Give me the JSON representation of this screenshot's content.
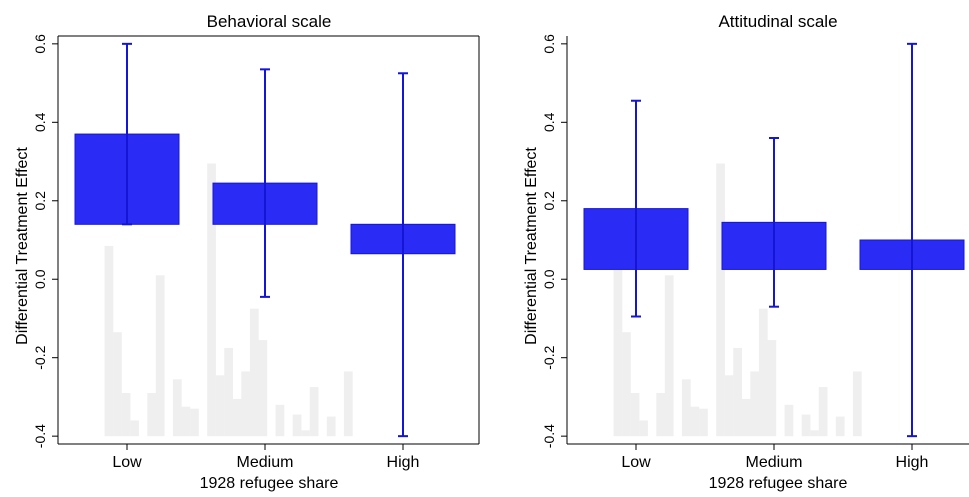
{
  "chart_data": [
    {
      "type": "bar",
      "title": "Behavioral scale",
      "ylabel": "Differential Treatment Effect",
      "xlabel": "1928 refugee share",
      "categories": [
        "Low",
        "Medium",
        "High"
      ],
      "ylim": [
        -0.42,
        0.62
      ],
      "yticks": [
        "-0.4",
        "-0.2",
        "0.0",
        "0.2",
        "0.4",
        "0.6"
      ],
      "bars": [
        {
          "category": "Low",
          "low": 0.14,
          "high": 0.37,
          "ci_low": 0.14,
          "ci_high": 0.6
        },
        {
          "category": "Medium",
          "low": 0.14,
          "high": 0.245,
          "ci_low": -0.045,
          "ci_high": 0.535
        },
        {
          "category": "High",
          "low": 0.065,
          "high": 0.14,
          "ci_low": -0.4,
          "ci_high": 0.525
        }
      ],
      "histogram_heights": [
        0.0,
        0.485,
        0.265,
        0.11,
        0.04,
        0.0,
        0.11,
        0.41,
        0.0,
        0.145,
        0.075,
        0.07,
        0.0,
        0.695,
        0.155,
        0.225,
        0.095,
        0.165,
        0.325,
        0.245,
        0.0,
        0.08,
        0.0,
        0.055,
        0.015,
        0.125,
        0.0,
        0.05,
        0.0,
        0.165,
        0.0
      ],
      "colors": {
        "bar": "#2a2cf5",
        "error": "#1515d6",
        "hist": "#efefef"
      }
    },
    {
      "type": "bar",
      "title": "Attitudinal scale",
      "ylabel": "Differential Treatment Effect",
      "xlabel": "1928 refugee share",
      "categories": [
        "Low",
        "Medium",
        "High"
      ],
      "ylim": [
        -0.42,
        0.62
      ],
      "yticks": [
        "-0.4",
        "-0.2",
        "0.0",
        "0.2",
        "0.4",
        "0.6"
      ],
      "bars": [
        {
          "category": "Low",
          "low": 0.025,
          "high": 0.18,
          "ci_low": -0.095,
          "ci_high": 0.455
        },
        {
          "category": "Medium",
          "low": 0.025,
          "high": 0.145,
          "ci_low": -0.07,
          "ci_high": 0.36
        },
        {
          "category": "High",
          "low": 0.025,
          "high": 0.1,
          "ci_low": -0.4,
          "ci_high": 0.6
        }
      ],
      "histogram_heights": [
        0.0,
        0.485,
        0.265,
        0.11,
        0.04,
        0.0,
        0.11,
        0.41,
        0.0,
        0.145,
        0.075,
        0.07,
        0.0,
        0.695,
        0.155,
        0.225,
        0.095,
        0.165,
        0.325,
        0.245,
        0.0,
        0.08,
        0.0,
        0.055,
        0.015,
        0.125,
        0.0,
        0.05,
        0.0,
        0.165,
        0.0
      ],
      "colors": {
        "bar": "#2a2cf5",
        "error": "#1515d6",
        "hist": "#efefef"
      }
    }
  ]
}
